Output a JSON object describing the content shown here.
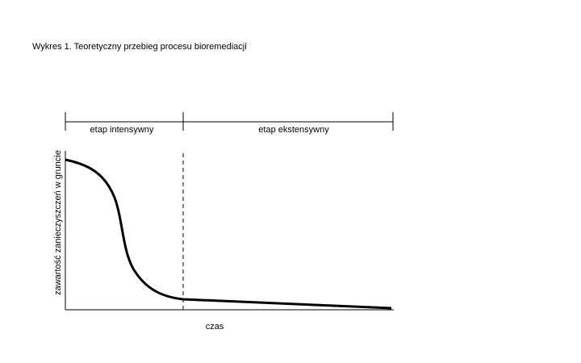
{
  "title": "Wykres 1. Teoretyczny przebieg procesu bioremediacji",
  "phases": [
    "etap intensywny",
    "etap ekstensywny"
  ],
  "y_axis_label": "zawartość zanieczyszczeń w gruncie",
  "x_axis_label": "czas"
}
